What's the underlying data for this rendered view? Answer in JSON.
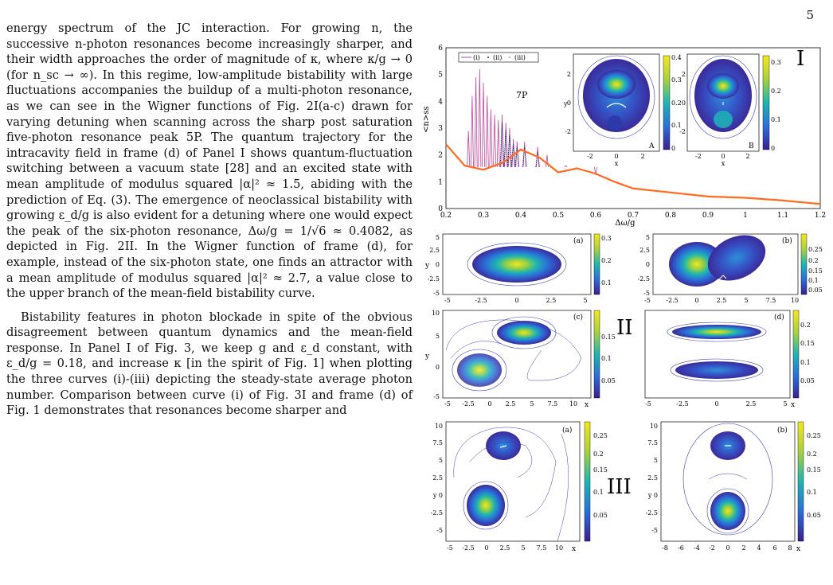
{
  "page_number": "5",
  "paragraphs": [
    "energy spectrum of the JC interaction. For growing n, the successive n-photon resonances become increasingly sharper, and their width approaches the order of magnitude of κ, where κ/g → 0 (for n_sc → ∞). In this regime, low-amplitude bistability with large fluctuations accompanies the buildup of a multi-photon resonance, as we can see in the Wigner functions of Fig. 2I(a-c) drawn for varying detuning when scanning across the sharp post saturation five-photon resonance peak 5P. The quantum trajectory for the intracavity field in frame (d) of Panel I shows quantum-fluctuation switching between a vacuum state [28] and an excited state with mean amplitude of modulus squared |α|² ≈ 1.5, abiding with the prediction of Eq. (3). The emergence of neoclassical bistability with growing ε_d/g is also evident for a detuning where one would expect the peak of the six-photon resonance, Δω/g = 1/√6 ≈ 0.4082, as depicted in Fig. 2II. In the Wigner function of frame (d), for example, instead of the six-photon state, one finds an attractor with a mean amplitude of modulus squared |α|² ≈ 2.7, a value close to the upper branch of the mean-field bistability curve.",
    "Bistability features in photon blockade in spite of the obvious disagreement between quantum dynamics and the mean-field response. In Panel I of Fig. 3, we keep g and ε_d constant, with ε_d/g = 0.18, and increase κ [in the spirit of Fig. 1] when plotting the three curves (i)-(iii) depicting the steady-state average photon number. Comparison between curve (i) of Fig. 3I and frame (d) of Fig. 1 demonstrates that resonances become sharper and"
  ],
  "figure": {
    "panel_labels": [
      "I",
      "II",
      "III"
    ],
    "main_plot": {
      "ylabel": "<n>ss",
      "xlabel": "Δω/g",
      "xticks": [
        "0.2",
        "0.3",
        "0.4",
        "0.5",
        "0.6",
        "0.7",
        "0.8",
        "0.9",
        "1",
        "1.1",
        "1.2"
      ],
      "yticks": [
        "0",
        "1",
        "2",
        "3",
        "4",
        "5",
        "6"
      ],
      "legend": [
        "(i)",
        "(ii)",
        "(iii)"
      ],
      "annotation": "7P"
    },
    "inset_A": {
      "label": "A",
      "colorbar": [
        "0",
        "0.1",
        "0.2",
        "0.3",
        "0.4"
      ],
      "xticks": [
        "-2",
        "0",
        "2"
      ],
      "yticks": [
        "-2",
        "0",
        "2"
      ],
      "xlabel": "x",
      "ylabel": "y"
    },
    "inset_B": {
      "label": "B",
      "colorbar": [
        "0",
        "0.1",
        "0.2",
        "0.3"
      ],
      "xticks": [
        "-2",
        "0",
        "2"
      ],
      "yticks": [
        "-2",
        "0",
        "2"
      ],
      "xlabel": "x"
    },
    "II_a": {
      "label": "(a)",
      "colorbar": [
        "0.1",
        "0.2",
        "0.3"
      ],
      "yticks": [
        "5",
        "2.5",
        "0",
        "-2.5",
        "-5"
      ],
      "xticks": [
        "-5",
        "-2.5",
        "0",
        "2.5",
        "5"
      ],
      "ylabel": "y"
    },
    "II_b": {
      "label": "(b)",
      "colorbar": [
        "0.05",
        "0.1",
        "0.15",
        "0.2",
        "0.25"
      ],
      "yticks": [
        "5",
        "2.5",
        "0",
        "-2.5",
        "-5"
      ],
      "xticks": [
        "-5",
        "-2.5",
        "0",
        "2.5",
        "5",
        "7.5",
        "10"
      ]
    },
    "II_c": {
      "label": "(c)",
      "colorbar": [
        "0.05",
        "0.1",
        "0.15"
      ],
      "yticks": [
        "10",
        "5",
        "0",
        "-5"
      ],
      "xticks": [
        "-5",
        "-2.5",
        "0",
        "2.5",
        "5",
        "7.5",
        "10"
      ],
      "xlabel": "x",
      "ylabel": "y"
    },
    "II_d": {
      "label": "(d)",
      "colorbar": [
        "0.05",
        "0.1",
        "0.15",
        "0.2"
      ],
      "xticks": [
        "-5",
        "-2.5",
        "0",
        "2.5",
        "5"
      ],
      "xlabel": "x"
    },
    "III_a": {
      "label": "(a)",
      "colorbar": [
        "0.05",
        "0.1",
        "0.15",
        "0.2",
        "0.25"
      ],
      "yticks": [
        "10",
        "7.5",
        "5",
        "2.5",
        "y 0",
        "-2.5",
        "-5"
      ],
      "xticks": [
        "-5",
        "-2.5",
        "0",
        "2.5",
        "5",
        "7.5",
        "10"
      ],
      "xlabel": "x"
    },
    "III_b": {
      "label": "(b)",
      "colorbar": [
        "0.05",
        "0.1",
        "0.15",
        "0.2",
        "0.25"
      ],
      "yticks": [
        "10",
        "7.5",
        "5",
        "2.5",
        "y 0",
        "-2.5",
        "-5"
      ],
      "xticks": [
        "-8",
        "-6",
        "-4",
        "-2",
        "0",
        "2",
        "4",
        "6",
        "8"
      ],
      "xlabel": "x"
    }
  },
  "chart_data": {
    "type": "line",
    "xlabel": "Δω/g",
    "ylabel": "<n>ss",
    "xlim": [
      0.2,
      1.2
    ],
    "ylim": [
      0,
      6
    ],
    "series": [
      {
        "name": "(i)",
        "color": "#c0459b"
      },
      {
        "name": "(ii)",
        "color": "#1c2a7a"
      },
      {
        "name": "(iii)",
        "color": "#6b3fa0"
      }
    ],
    "x": [
      0.2,
      0.25,
      0.3,
      0.35,
      0.4,
      0.45,
      0.5,
      0.55,
      0.6,
      0.65,
      0.7,
      0.8,
      0.9,
      1.0,
      1.1,
      1.2
    ],
    "envelope_values": [
      2.4,
      1.6,
      1.45,
      1.7,
      2.2,
      1.9,
      1.35,
      1.5,
      1.3,
      1.0,
      0.75,
      0.6,
      0.45,
      0.4,
      0.3,
      0.17
    ],
    "peaks_x": [
      0.26,
      0.27,
      0.28,
      0.29,
      0.3,
      0.31,
      0.32,
      0.33,
      0.34,
      0.35,
      0.36,
      0.37,
      0.38,
      0.39,
      0.41,
      0.445,
      0.47,
      0.52,
      0.6
    ],
    "peaks_y": [
      2.9,
      4.2,
      4.9,
      5.2,
      4.7,
      4.2,
      3.7,
      3.5,
      3.3,
      3.5,
      3.2,
      3.0,
      2.6,
      2.5,
      2.5,
      2.3,
      2.0,
      1.6,
      1.25
    ],
    "legend_placement": "top-left"
  }
}
